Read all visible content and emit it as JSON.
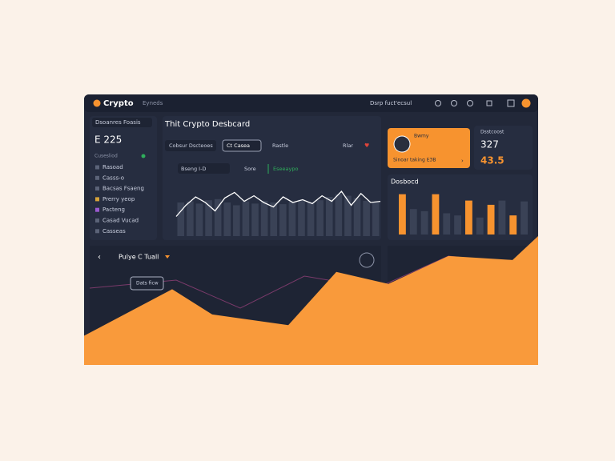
{
  "topbar": {
    "brand": "Crypto",
    "nav": "Eyneds",
    "user": "Dsrp fuct'ecsul"
  },
  "sidebar": {
    "search": "Dsoanres Foasis",
    "balance": "E 225",
    "section": "Cusesliod",
    "items": [
      "Rasoad",
      "Casss-o",
      "Bacsas Fsaeng",
      "Prerry yeop",
      "Pacteng",
      "Casad Vucad",
      "Casseas"
    ]
  },
  "main": {
    "title": "Thit Crypto Desbcard",
    "tabs": [
      "Cobsur Dscteoes",
      "Ct Casea",
      "Rastle",
      "Rlar"
    ],
    "filters": [
      "Bseng I-D",
      "Sore",
      "Eseeaypo"
    ],
    "line_chart": {
      "ylim": [
        0,
        100
      ],
      "values": [
        35,
        55,
        70,
        60,
        45,
        68,
        78,
        62,
        72,
        60,
        52,
        70,
        60,
        65,
        58,
        72,
        62,
        80,
        55,
        76,
        60,
        62
      ]
    },
    "bar_chart": {
      "ylim": [
        0,
        100
      ],
      "values": [
        60,
        62,
        58,
        64,
        66,
        60,
        55,
        62,
        58,
        63,
        60,
        57,
        61,
        65,
        60,
        64,
        70,
        75,
        72,
        68,
        63,
        60
      ]
    }
  },
  "profile": {
    "name": "Bwmy",
    "caption": "Sinoar taking ЕЗВ"
  },
  "stats": {
    "label": "Dsstcoost",
    "value1": "327",
    "value2": "43.5"
  },
  "side_chart": {
    "title": "Dosbocd",
    "ylim": [
      0,
      100
    ],
    "values": [
      95,
      60,
      55,
      95,
      50,
      45,
      80,
      40,
      70,
      80,
      45,
      78
    ],
    "colors": [
      "#f7932f",
      "#3a4256",
      "#3a4256",
      "#f7932f",
      "#3a4256",
      "#3a4256",
      "#f7932f",
      "#3a4256",
      "#f7932f",
      "#3a4256",
      "#f7932f",
      "#3a4256"
    ]
  },
  "bottom": {
    "title": "Pulye C Tuall",
    "tooltip": "Dats ficw",
    "area_chart": {
      "xlim": [
        0,
        567
      ],
      "ylim": [
        0,
        100
      ],
      "x": [
        0,
        110,
        160,
        255,
        315,
        380,
        455,
        535,
        567
      ],
      "values": [
        22,
        57,
        38,
        30,
        70,
        61,
        82,
        79,
        97
      ]
    }
  }
}
